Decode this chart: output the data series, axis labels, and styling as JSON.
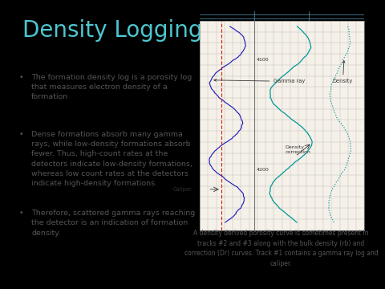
{
  "title": "Density Logging",
  "title_color": "#4ec6d0",
  "title_fontsize": 20,
  "slide_bg": "#ffffff",
  "outer_bg": "#000000",
  "bullet_points": [
    "The formation density log is a porosity log\nthat measures electron density of a\nformation",
    "Dense formations absorb many gamma\nrays, while low-density formations absorb\nfewer. Thus, high-count rates at the\ndetectors indicate low-density formations,\nwhereas low count rates at the detectors\nindicate high-density formations.",
    "Therefore, scattered gamma rays reaching\nthe detector is an indication of formation\ndensity."
  ],
  "bullet_color": "#555555",
  "bullet_fontsize": 6.8,
  "caption_text": "A density derived porosity curve is sometimes present in\ntracks #2 and #3 along with the bulk density (rb) and\ncorrection (Dr) curves. Track #1 contains a gamma ray log and\ncaliper.",
  "caption_fontsize": 5.5,
  "caption_color": "#555555",
  "log_bg": "#f5f0e8",
  "log_grid_color": "#bbbbbb",
  "gr_color": "#2222bb",
  "caliper_color": "#cc2200",
  "density_corr_color": "#009999",
  "density_color": "#009999",
  "label_color": "#333333",
  "depth_label_color": "#333333"
}
